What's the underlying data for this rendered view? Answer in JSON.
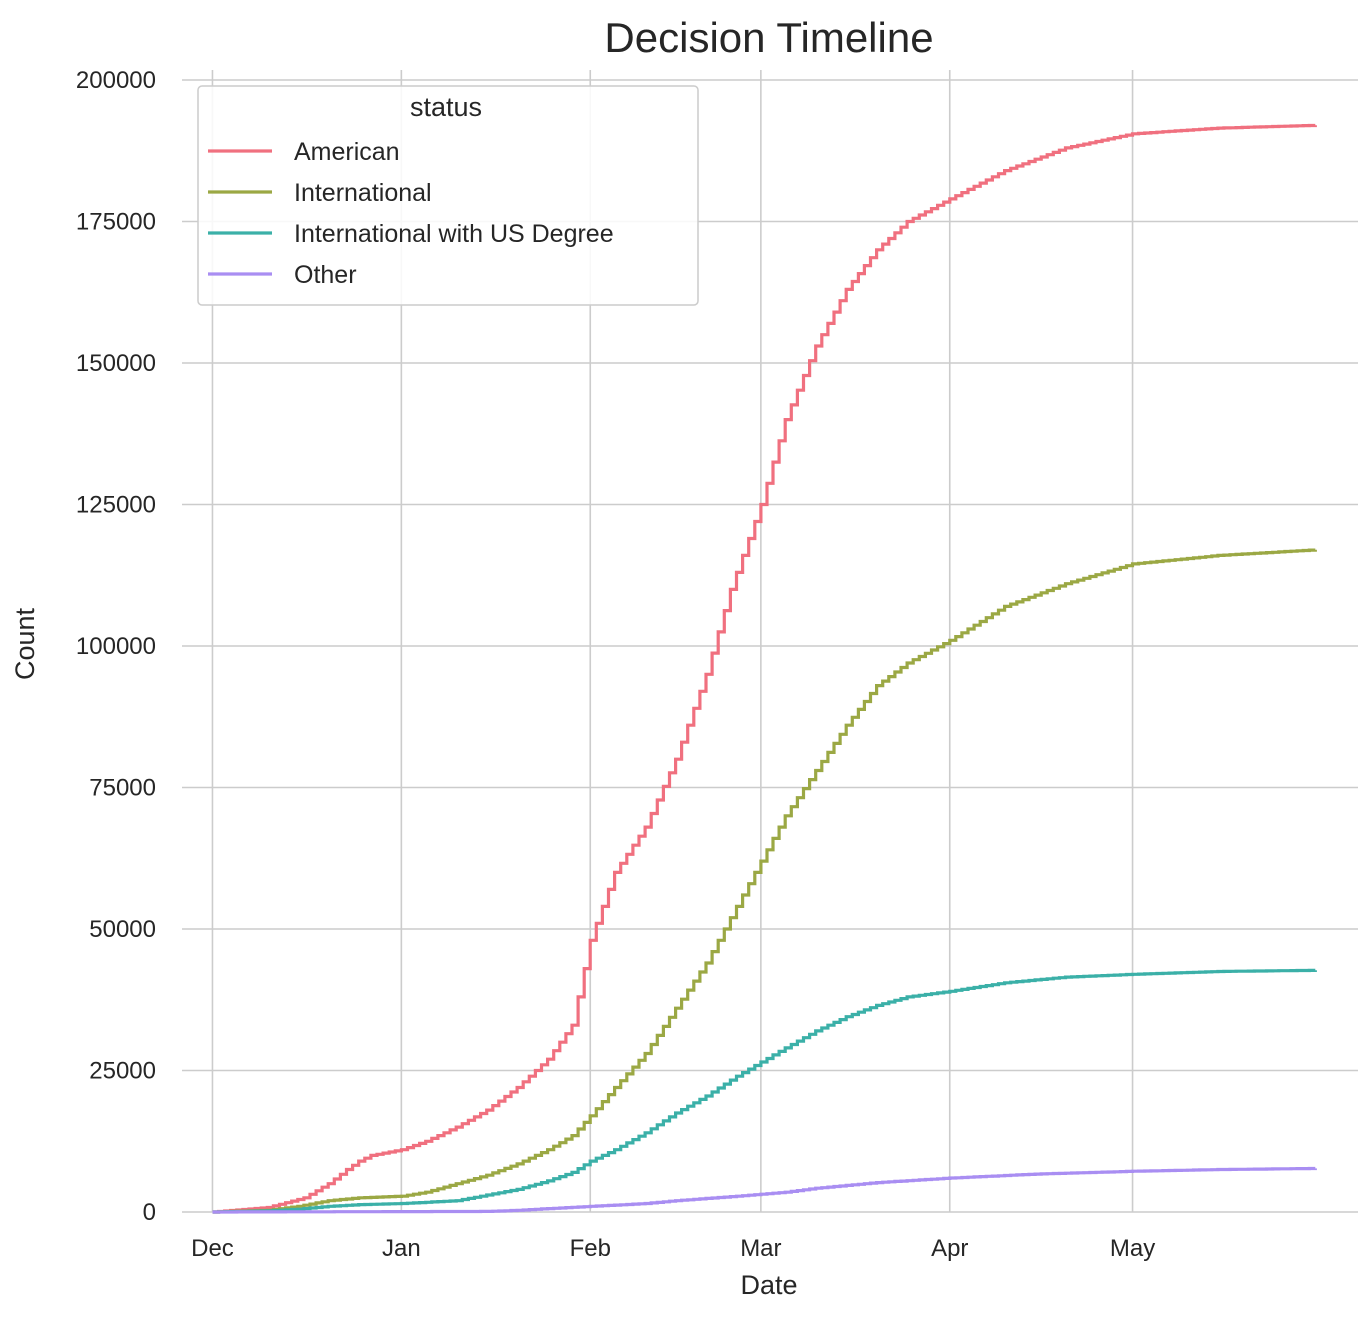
{
  "chart_data": {
    "type": "line",
    "title": "Decision Timeline",
    "xlabel": "Date",
    "ylabel": "Count",
    "ylim": [
      0,
      200000
    ],
    "xlim": [
      "2016-11-26",
      "2017-06-07"
    ],
    "y_ticks": [
      "0",
      "25000",
      "50000",
      "75000",
      "100000",
      "125000",
      "150000",
      "175000",
      "200000"
    ],
    "x_ticks": [
      {
        "label": "Dec",
        "date": "2016-12-01"
      },
      {
        "label": "Jan",
        "date": "2017-01-01"
      },
      {
        "label": "Feb",
        "date": "2017-02-01"
      },
      {
        "label": "Mar",
        "date": "2017-03-01"
      },
      {
        "label": "Apr",
        "date": "2017-04-01"
      },
      {
        "label": "May",
        "date": "2017-05-01"
      }
    ],
    "grid": true,
    "legend": {
      "title": "status",
      "placement": "top-left"
    },
    "drawstyle": "steps",
    "series": [
      {
        "name": "American",
        "color": "#f0707f",
        "points": [
          [
            "2016-12-01",
            0
          ],
          [
            "2016-12-10",
            800
          ],
          [
            "2016-12-16",
            2500
          ],
          [
            "2016-12-20",
            5000
          ],
          [
            "2016-12-23",
            7500
          ],
          [
            "2016-12-25",
            9000
          ],
          [
            "2016-12-27",
            10000
          ],
          [
            "2017-01-01",
            11000
          ],
          [
            "2017-01-05",
            12500
          ],
          [
            "2017-01-10",
            15000
          ],
          [
            "2017-01-15",
            18000
          ],
          [
            "2017-01-20",
            22000
          ],
          [
            "2017-01-25",
            27000
          ],
          [
            "2017-01-29",
            33000
          ],
          [
            "2017-02-01",
            48000
          ],
          [
            "2017-02-05",
            60000
          ],
          [
            "2017-02-10",
            68000
          ],
          [
            "2017-02-15",
            80000
          ],
          [
            "2017-02-20",
            95000
          ],
          [
            "2017-02-24",
            110000
          ],
          [
            "2017-03-01",
            125000
          ],
          [
            "2017-03-05",
            140000
          ],
          [
            "2017-03-10",
            153000
          ],
          [
            "2017-03-15",
            163000
          ],
          [
            "2017-03-20",
            170000
          ],
          [
            "2017-03-25",
            175000
          ],
          [
            "2017-04-01",
            179000
          ],
          [
            "2017-04-10",
            184000
          ],
          [
            "2017-04-20",
            188000
          ],
          [
            "2017-05-01",
            190500
          ],
          [
            "2017-05-15",
            191500
          ],
          [
            "2017-05-31",
            192000
          ]
        ]
      },
      {
        "name": "International",
        "color": "#9ba844",
        "points": [
          [
            "2016-12-01",
            0
          ],
          [
            "2016-12-10",
            300
          ],
          [
            "2016-12-15",
            1000
          ],
          [
            "2016-12-20",
            2000
          ],
          [
            "2016-12-25",
            2500
          ],
          [
            "2017-01-01",
            2800
          ],
          [
            "2017-01-05",
            3500
          ],
          [
            "2017-01-10",
            5000
          ],
          [
            "2017-01-15",
            6500
          ],
          [
            "2017-01-20",
            8500
          ],
          [
            "2017-01-25",
            11000
          ],
          [
            "2017-01-29",
            13500
          ],
          [
            "2017-02-01",
            17000
          ],
          [
            "2017-02-05",
            22000
          ],
          [
            "2017-02-10",
            28000
          ],
          [
            "2017-02-15",
            36000
          ],
          [
            "2017-02-20",
            44000
          ],
          [
            "2017-02-24",
            52000
          ],
          [
            "2017-03-01",
            62000
          ],
          [
            "2017-03-05",
            70000
          ],
          [
            "2017-03-10",
            78000
          ],
          [
            "2017-03-15",
            86000
          ],
          [
            "2017-03-20",
            93000
          ],
          [
            "2017-03-25",
            97000
          ],
          [
            "2017-04-01",
            101000
          ],
          [
            "2017-04-10",
            107000
          ],
          [
            "2017-04-20",
            111000
          ],
          [
            "2017-05-01",
            114500
          ],
          [
            "2017-05-15",
            116000
          ],
          [
            "2017-05-31",
            117000
          ]
        ]
      },
      {
        "name": "International with US Degree",
        "color": "#3bb0a8",
        "points": [
          [
            "2016-12-01",
            0
          ],
          [
            "2016-12-10",
            200
          ],
          [
            "2016-12-15",
            500
          ],
          [
            "2016-12-20",
            1000
          ],
          [
            "2016-12-25",
            1300
          ],
          [
            "2017-01-01",
            1500
          ],
          [
            "2017-01-10",
            2000
          ],
          [
            "2017-01-15",
            3000
          ],
          [
            "2017-01-20",
            4000
          ],
          [
            "2017-01-25",
            5500
          ],
          [
            "2017-01-29",
            7000
          ],
          [
            "2017-02-01",
            9000
          ],
          [
            "2017-02-05",
            11000
          ],
          [
            "2017-02-10",
            14000
          ],
          [
            "2017-02-15",
            17500
          ],
          [
            "2017-02-20",
            20500
          ],
          [
            "2017-02-25",
            24000
          ],
          [
            "2017-03-01",
            26500
          ],
          [
            "2017-03-05",
            29000
          ],
          [
            "2017-03-10",
            32000
          ],
          [
            "2017-03-15",
            34500
          ],
          [
            "2017-03-20",
            36500
          ],
          [
            "2017-03-25",
            38000
          ],
          [
            "2017-04-01",
            39000
          ],
          [
            "2017-04-10",
            40500
          ],
          [
            "2017-04-20",
            41500
          ],
          [
            "2017-05-01",
            42000
          ],
          [
            "2017-05-15",
            42500
          ],
          [
            "2017-05-31",
            42700
          ]
        ]
      },
      {
        "name": "Other",
        "color": "#a98ef2",
        "points": [
          [
            "2016-12-01",
            0
          ],
          [
            "2017-01-15",
            100
          ],
          [
            "2017-01-20",
            300
          ],
          [
            "2017-01-25",
            600
          ],
          [
            "2017-02-01",
            1000
          ],
          [
            "2017-02-10",
            1500
          ],
          [
            "2017-02-15",
            2000
          ],
          [
            "2017-02-25",
            2800
          ],
          [
            "2017-03-05",
            3500
          ],
          [
            "2017-03-10",
            4200
          ],
          [
            "2017-03-20",
            5200
          ],
          [
            "2017-04-01",
            6000
          ],
          [
            "2017-04-15",
            6700
          ],
          [
            "2017-05-01",
            7200
          ],
          [
            "2017-05-15",
            7500
          ],
          [
            "2017-05-31",
            7700
          ]
        ]
      }
    ]
  }
}
